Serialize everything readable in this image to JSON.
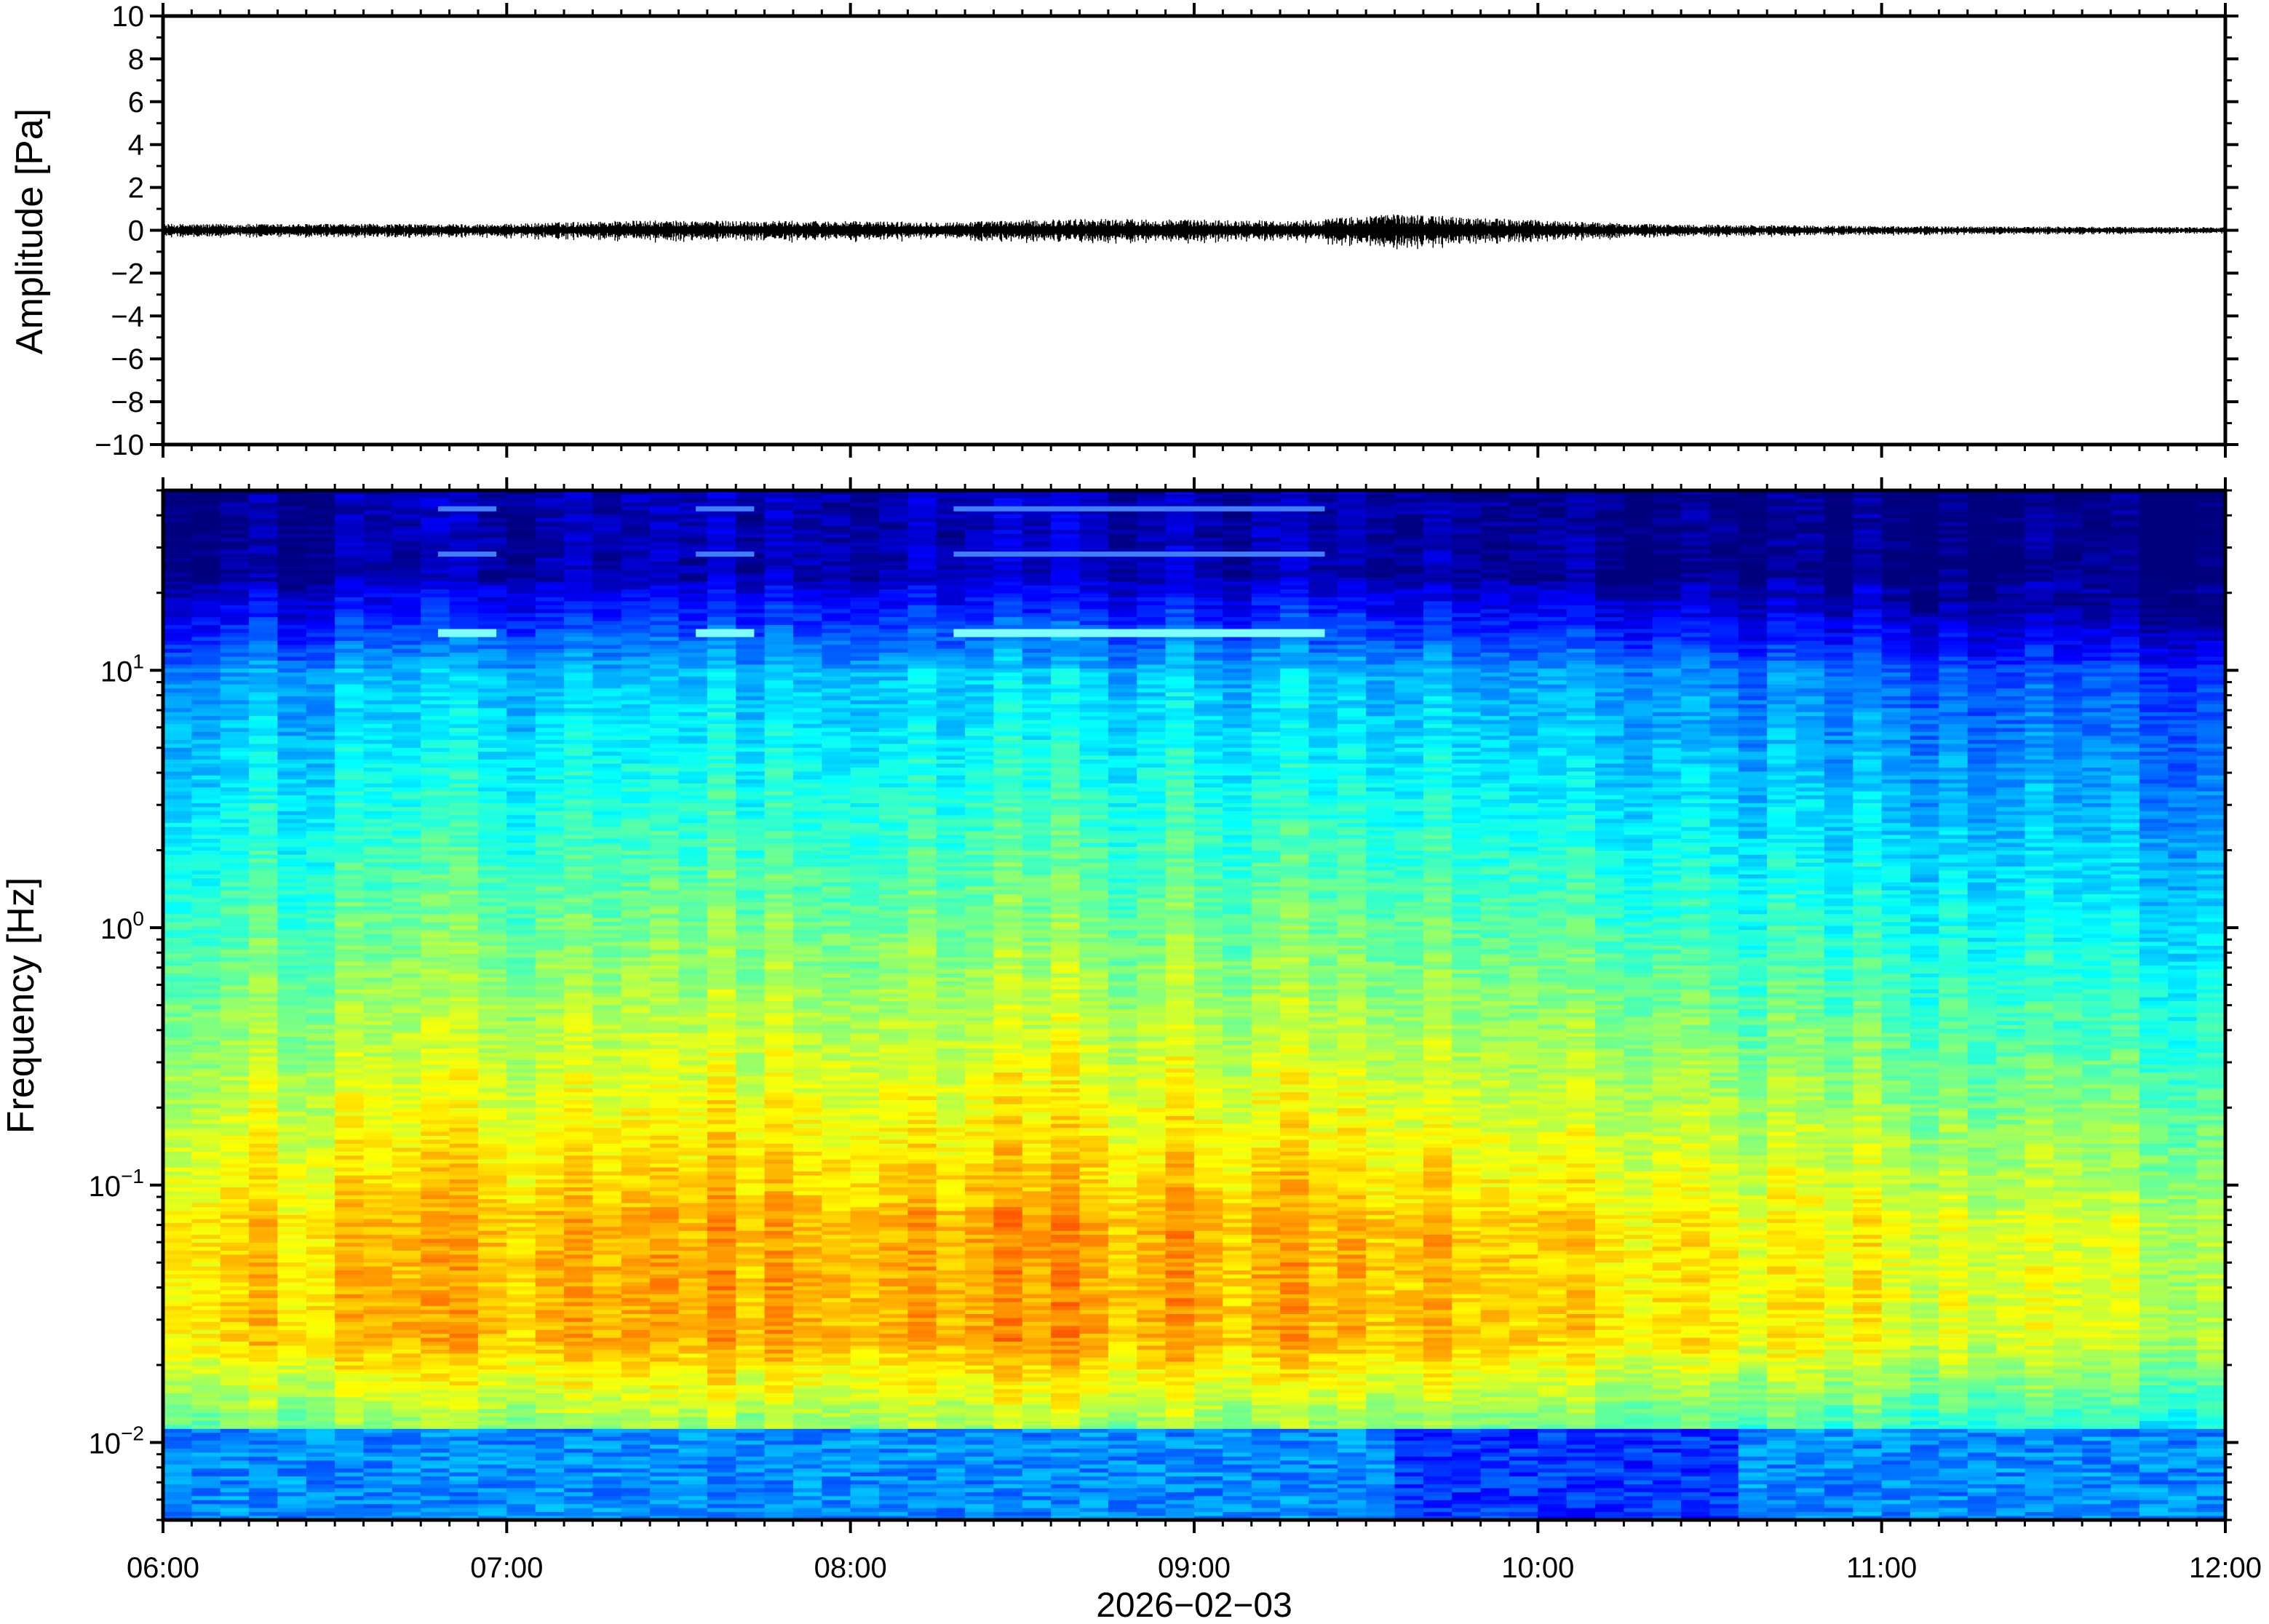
{
  "chart_data": [
    {
      "type": "line",
      "panel": "waveform",
      "ylabel": "Amplitude [Pa]",
      "ylim": [
        -10,
        10
      ],
      "yticks": [
        10,
        8,
        6,
        4,
        2,
        0,
        -2,
        -4,
        -6,
        -8,
        -10
      ],
      "ytick_labels": [
        "10",
        "8",
        "6",
        "4",
        "2",
        "0",
        "−2",
        "−4",
        "−6",
        "−8",
        "−10"
      ],
      "xlim_hours": [
        6,
        12
      ],
      "series": [
        {
          "values": {
            "t_hours": [
              6.0,
              6.5,
              7.0,
              7.3,
              7.8,
              8.3,
              8.7,
              9.0,
              9.3,
              9.6,
              9.8,
              10.3,
              11.0,
              12.0
            ],
            "peak_pa": [
              0.3,
              0.3,
              0.3,
              0.45,
              0.45,
              0.4,
              0.55,
              0.5,
              0.45,
              0.8,
              0.6,
              0.3,
              0.2,
              0.15
            ]
          }
        }
      ],
      "line_color": "#000000"
    },
    {
      "type": "heatmap",
      "panel": "spectrogram",
      "ylabel": "Frequency [Hz]",
      "yscale": "log",
      "ylim": [
        0.005,
        50
      ],
      "yticks": [
        {
          "base": "10",
          "exp": "1",
          "value": 10
        },
        {
          "base": "10",
          "exp": "0",
          "value": 1
        },
        {
          "base": "10",
          "exp": "−1",
          "value": 0.1
        },
        {
          "base": "10",
          "exp": "−2",
          "value": 0.01
        }
      ],
      "xlim_hours": [
        6,
        12
      ],
      "colormap": [
        "#00007f",
        "#0000ff",
        "#007fff",
        "#00ffff",
        "#7fff7f",
        "#ffff00",
        "#ff7f00",
        "#ff0000"
      ],
      "narrowband_lines_hz": [
        14,
        28,
        42
      ],
      "narrowband_intervals_hours": [
        [
          6.8,
          6.97
        ],
        [
          7.55,
          7.72
        ],
        [
          8.3,
          9.38
        ]
      ]
    }
  ],
  "xaxis": {
    "tick_labels": [
      "06:00",
      "07:00",
      "08:00",
      "09:00",
      "10:00",
      "11:00",
      "12:00"
    ],
    "date_label": "2026−02−03"
  }
}
